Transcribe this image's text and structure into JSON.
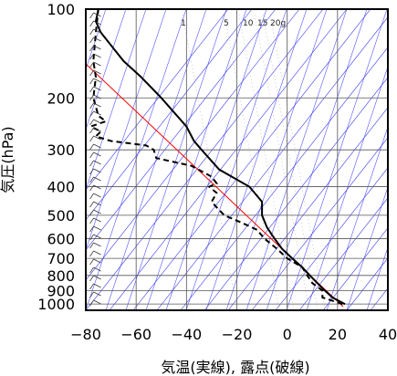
{
  "chart_data": {
    "type": "line",
    "title": "",
    "xlabel": "気温(実線), 露点(破線)",
    "ylabel": "気圧(hPa)",
    "x_ticks": [
      -80,
      -60,
      -40,
      -20,
      0,
      20,
      40
    ],
    "y_ticks": [
      100,
      200,
      300,
      400,
      500,
      600,
      700,
      800,
      900,
      1000
    ],
    "xlim": [
      -80,
      40
    ],
    "ylim": [
      1050,
      100
    ],
    "y_scale": "log",
    "mixing_ratio_labels": [
      "1",
      "5",
      "10",
      "15",
      "20g"
    ],
    "series": [
      {
        "line_style": "solid",
        "pressure": [
          1000,
          950,
          900,
          850,
          800,
          750,
          700,
          650,
          600,
          550,
          500,
          450,
          400,
          350,
          300,
          280,
          250,
          200,
          170,
          150,
          120,
          110,
          100
        ],
        "temp": [
          23,
          18,
          15,
          12,
          9,
          6,
          2,
          -2,
          -5,
          -8,
          -10,
          -10,
          -15,
          -27,
          -34,
          -37,
          -40,
          -50,
          -58,
          -65,
          -74,
          -76,
          -75
        ]
      },
      {
        "line_style": "dashed",
        "pressure": [
          1000,
          950,
          900,
          850,
          800,
          750,
          700,
          650,
          600,
          560,
          530,
          500,
          470,
          450,
          420,
          400,
          390,
          370,
          340,
          320,
          300,
          290,
          280,
          270,
          260,
          250,
          240,
          230,
          200,
          170,
          150,
          120,
          100
        ],
        "dewpoint": [
          22,
          14,
          14,
          10,
          8,
          6,
          0,
          -4,
          -9,
          -12,
          -18,
          -25,
          -28,
          -30,
          -28,
          -31,
          -28,
          -30,
          -38,
          -52,
          -53,
          -56,
          -70,
          -76,
          -74,
          -78,
          -72,
          -75,
          -77,
          -76,
          -77,
          -76,
          -75
        ]
      }
    ],
    "reference_line": {
      "color": "#ff0000",
      "x_points": [
        -80,
        30
      ]
    },
    "grid": true
  }
}
